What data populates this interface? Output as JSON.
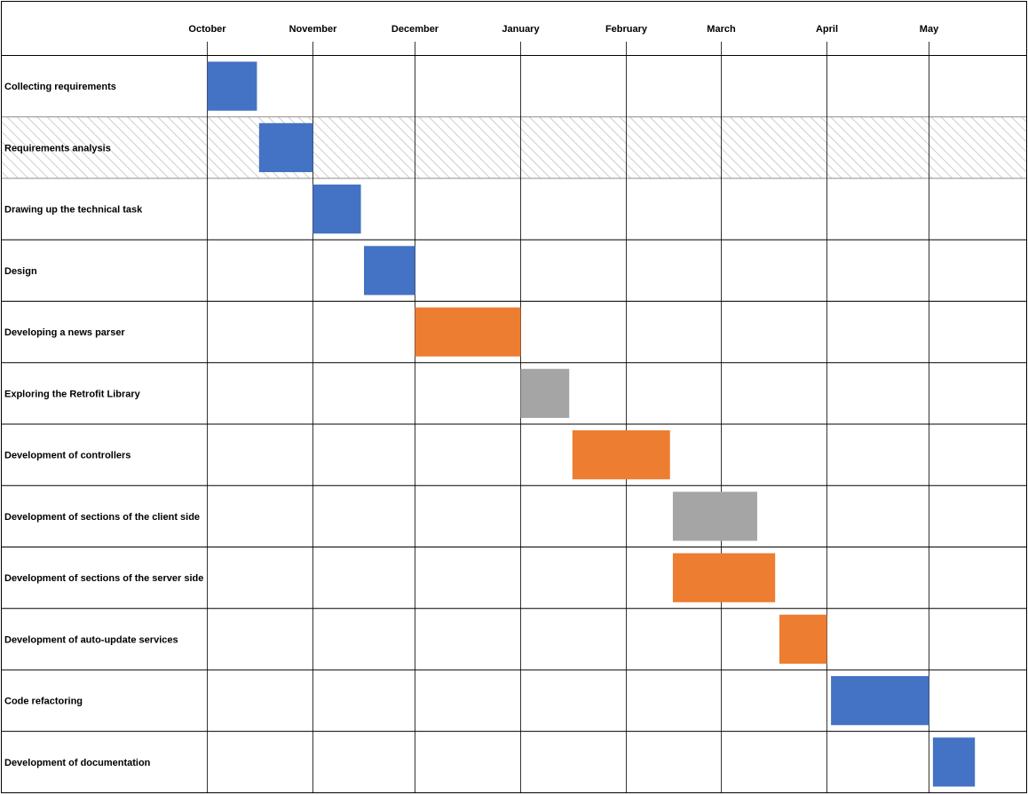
{
  "chart_data": {
    "type": "bar",
    "subtype": "gantt",
    "title": "",
    "xlabel": "",
    "ylabel": "",
    "months": [
      "October",
      "November",
      "December",
      "January",
      "February",
      "March",
      "April",
      "May"
    ],
    "tasks": [
      {
        "name": "Collecting requirements",
        "start": 0.0,
        "end": 0.47,
        "color": "#4472c4"
      },
      {
        "name": "Requirements analysis",
        "start": 0.49,
        "end": 1.0,
        "color": "#4472c4"
      },
      {
        "name": "Drawing up the technical task",
        "start": 1.0,
        "end": 1.47,
        "color": "#4472c4"
      },
      {
        "name": "Design",
        "start": 1.5,
        "end": 2.0,
        "color": "#4472c4"
      },
      {
        "name": "Developing a news parser",
        "start": 2.0,
        "end": 3.0,
        "color": "#ed7d31"
      },
      {
        "name": "Exploring the Retrofit Library",
        "start": 3.0,
        "end": 3.46,
        "color": "#a5a5a5"
      },
      {
        "name": "Development of controllers",
        "start": 3.49,
        "end": 4.46,
        "color": "#ed7d31"
      },
      {
        "name": "Development of sections of the client side",
        "start": 4.49,
        "end": 5.34,
        "color": "#a5a5a5"
      },
      {
        "name": "Development of sections of the server side",
        "start": 4.49,
        "end": 5.51,
        "color": "#ed7d31"
      },
      {
        "name": "Development of auto-update services",
        "start": 5.55,
        "end": 6.0,
        "color": "#ed7d31"
      },
      {
        "name": "Code refactoring",
        "start": 6.04,
        "end": 7.0,
        "color": "#4472c4"
      },
      {
        "name": "Development of documentation",
        "start": 7.04,
        "end": 7.47,
        "color": "#4472c4"
      }
    ],
    "highlighted_row": "Requirements analysis",
    "grid": true,
    "legend": "none"
  }
}
